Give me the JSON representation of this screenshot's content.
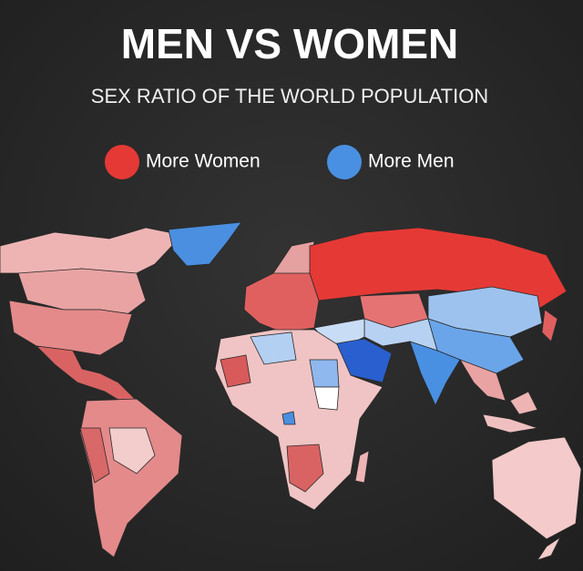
{
  "header": {
    "title": "MEN VS WOMEN",
    "subtitle": "SEX RATIO OF THE WORLD POPULATION"
  },
  "legend": [
    {
      "label": "More Women",
      "color": "#e53935"
    },
    {
      "label": "More Men",
      "color": "#4a90e2"
    }
  ]
}
